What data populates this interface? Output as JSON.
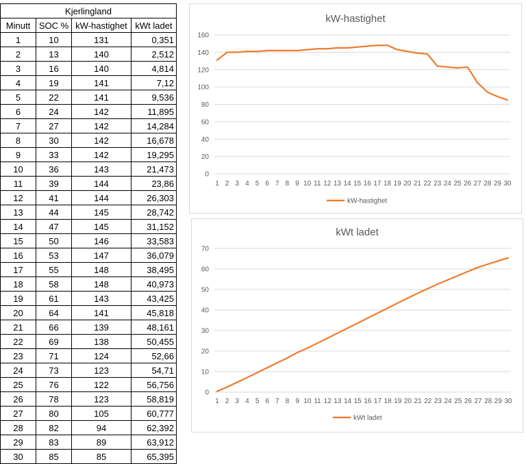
{
  "table": {
    "title": "Kjerlingland",
    "headers": [
      "Minutt",
      "SOC %",
      "kW-hastighet",
      "kWt ladet"
    ],
    "rows": [
      [
        "1",
        "10",
        "131",
        "0,351"
      ],
      [
        "2",
        "13",
        "140",
        "2,512"
      ],
      [
        "3",
        "16",
        "140",
        "4,814"
      ],
      [
        "4",
        "19",
        "141",
        "7,12"
      ],
      [
        "5",
        "22",
        "141",
        "9,536"
      ],
      [
        "6",
        "24",
        "142",
        "11,895"
      ],
      [
        "7",
        "27",
        "142",
        "14,284"
      ],
      [
        "8",
        "30",
        "142",
        "16,678"
      ],
      [
        "9",
        "33",
        "142",
        "19,295"
      ],
      [
        "10",
        "36",
        "143",
        "21,473"
      ],
      [
        "11",
        "39",
        "144",
        "23,86"
      ],
      [
        "12",
        "41",
        "144",
        "26,303"
      ],
      [
        "13",
        "44",
        "145",
        "28,742"
      ],
      [
        "14",
        "47",
        "145",
        "31,152"
      ],
      [
        "15",
        "50",
        "146",
        "33,583"
      ],
      [
        "16",
        "53",
        "147",
        "36,079"
      ],
      [
        "17",
        "55",
        "148",
        "38,495"
      ],
      [
        "18",
        "58",
        "148",
        "40,973"
      ],
      [
        "19",
        "61",
        "143",
        "43,425"
      ],
      [
        "20",
        "64",
        "141",
        "45,818"
      ],
      [
        "21",
        "66",
        "139",
        "48,161"
      ],
      [
        "22",
        "69",
        "138",
        "50,455"
      ],
      [
        "23",
        "71",
        "124",
        "52,66"
      ],
      [
        "24",
        "73",
        "123",
        "54,71"
      ],
      [
        "25",
        "76",
        "122",
        "56,756"
      ],
      [
        "26",
        "78",
        "123",
        "58,819"
      ],
      [
        "27",
        "80",
        "105",
        "60,777"
      ],
      [
        "28",
        "82",
        "94",
        "62,392"
      ],
      [
        "29",
        "83",
        "89",
        "63,912"
      ],
      [
        "30",
        "85",
        "85",
        "65,395"
      ]
    ]
  },
  "chart_data": [
    {
      "type": "line",
      "title": "kW-hastighet",
      "x": [
        1,
        2,
        3,
        4,
        5,
        6,
        7,
        8,
        9,
        10,
        11,
        12,
        13,
        14,
        15,
        16,
        17,
        18,
        19,
        20,
        21,
        22,
        23,
        24,
        25,
        26,
        27,
        28,
        29,
        30
      ],
      "series": [
        {
          "name": "kW-hastighet",
          "color": "#ED7D31",
          "values": [
            131,
            140,
            140,
            141,
            141,
            142,
            142,
            142,
            142,
            143,
            144,
            144,
            145,
            145,
            146,
            147,
            148,
            148,
            143,
            141,
            139,
            138,
            124,
            123,
            122,
            123,
            105,
            94,
            89,
            85
          ]
        }
      ],
      "ylim": [
        0,
        160
      ],
      "ystep": 20,
      "grid": true,
      "legend": "bottom"
    },
    {
      "type": "line",
      "title": "kWt ladet",
      "x": [
        1,
        2,
        3,
        4,
        5,
        6,
        7,
        8,
        9,
        10,
        11,
        12,
        13,
        14,
        15,
        16,
        17,
        18,
        19,
        20,
        21,
        22,
        23,
        24,
        25,
        26,
        27,
        28,
        29,
        30
      ],
      "series": [
        {
          "name": "kWt ladet",
          "color": "#ED7D31",
          "values": [
            0.351,
            2.512,
            4.814,
            7.12,
            9.536,
            11.895,
            14.284,
            16.678,
            19.295,
            21.473,
            23.86,
            26.303,
            28.742,
            31.152,
            33.583,
            36.079,
            38.495,
            40.973,
            43.425,
            45.818,
            48.161,
            50.455,
            52.66,
            54.71,
            56.756,
            58.819,
            60.777,
            62.392,
            63.912,
            65.395
          ]
        }
      ],
      "ylim": [
        0,
        70
      ],
      "ystep": 10,
      "grid": true,
      "legend": "bottom"
    }
  ]
}
